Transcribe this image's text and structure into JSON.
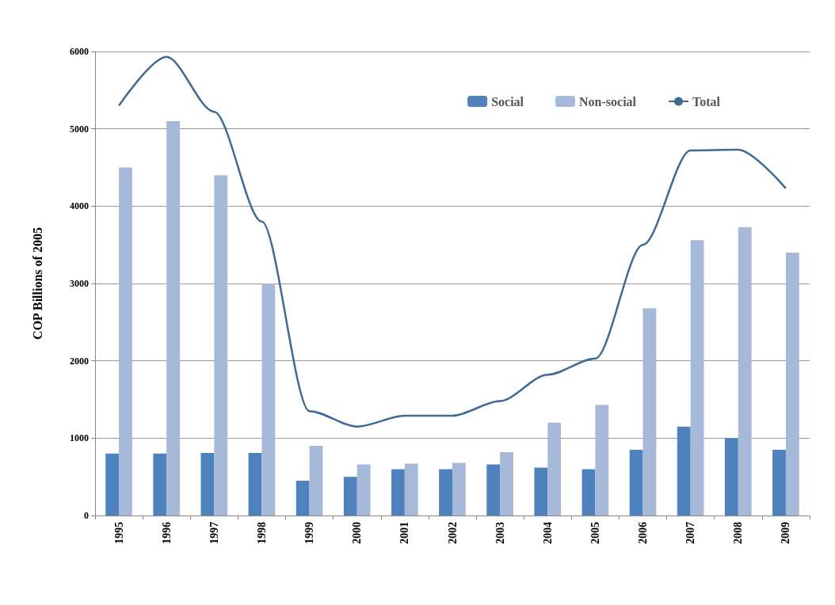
{
  "chart_data": {
    "type": "bar",
    "ylabel": "COP Billions of 2005",
    "categories": [
      "1995",
      "1996",
      "1997",
      "1998",
      "1999",
      "2000",
      "2001",
      "2002",
      "2003",
      "2004",
      "2005",
      "2006",
      "2007",
      "2008",
      "2009"
    ],
    "series": [
      {
        "name": "Social",
        "color": "#4f81bd",
        "values": [
          800,
          800,
          810,
          810,
          450,
          500,
          600,
          600,
          660,
          620,
          600,
          850,
          1150,
          1000,
          850
        ]
      },
      {
        "name": "Non-social",
        "color": "#a7b9d9",
        "values": [
          4500,
          5100,
          4400,
          3000,
          900,
          660,
          670,
          680,
          820,
          1200,
          1430,
          2680,
          3560,
          3730,
          3400
        ]
      },
      {
        "name": "Total",
        "type": "line",
        "color": "#3e6a94",
        "values": [
          5300,
          5930,
          5220,
          3800,
          1350,
          1150,
          1290,
          1290,
          1480,
          1820,
          2030,
          3500,
          4720,
          4730,
          4230
        ]
      }
    ],
    "ylim": [
      0,
      6000
    ],
    "yticks": [
      0,
      1000,
      2000,
      3000,
      4000,
      5000,
      6000
    ],
    "grid": "y",
    "legend": "top right",
    "marker": "none"
  }
}
